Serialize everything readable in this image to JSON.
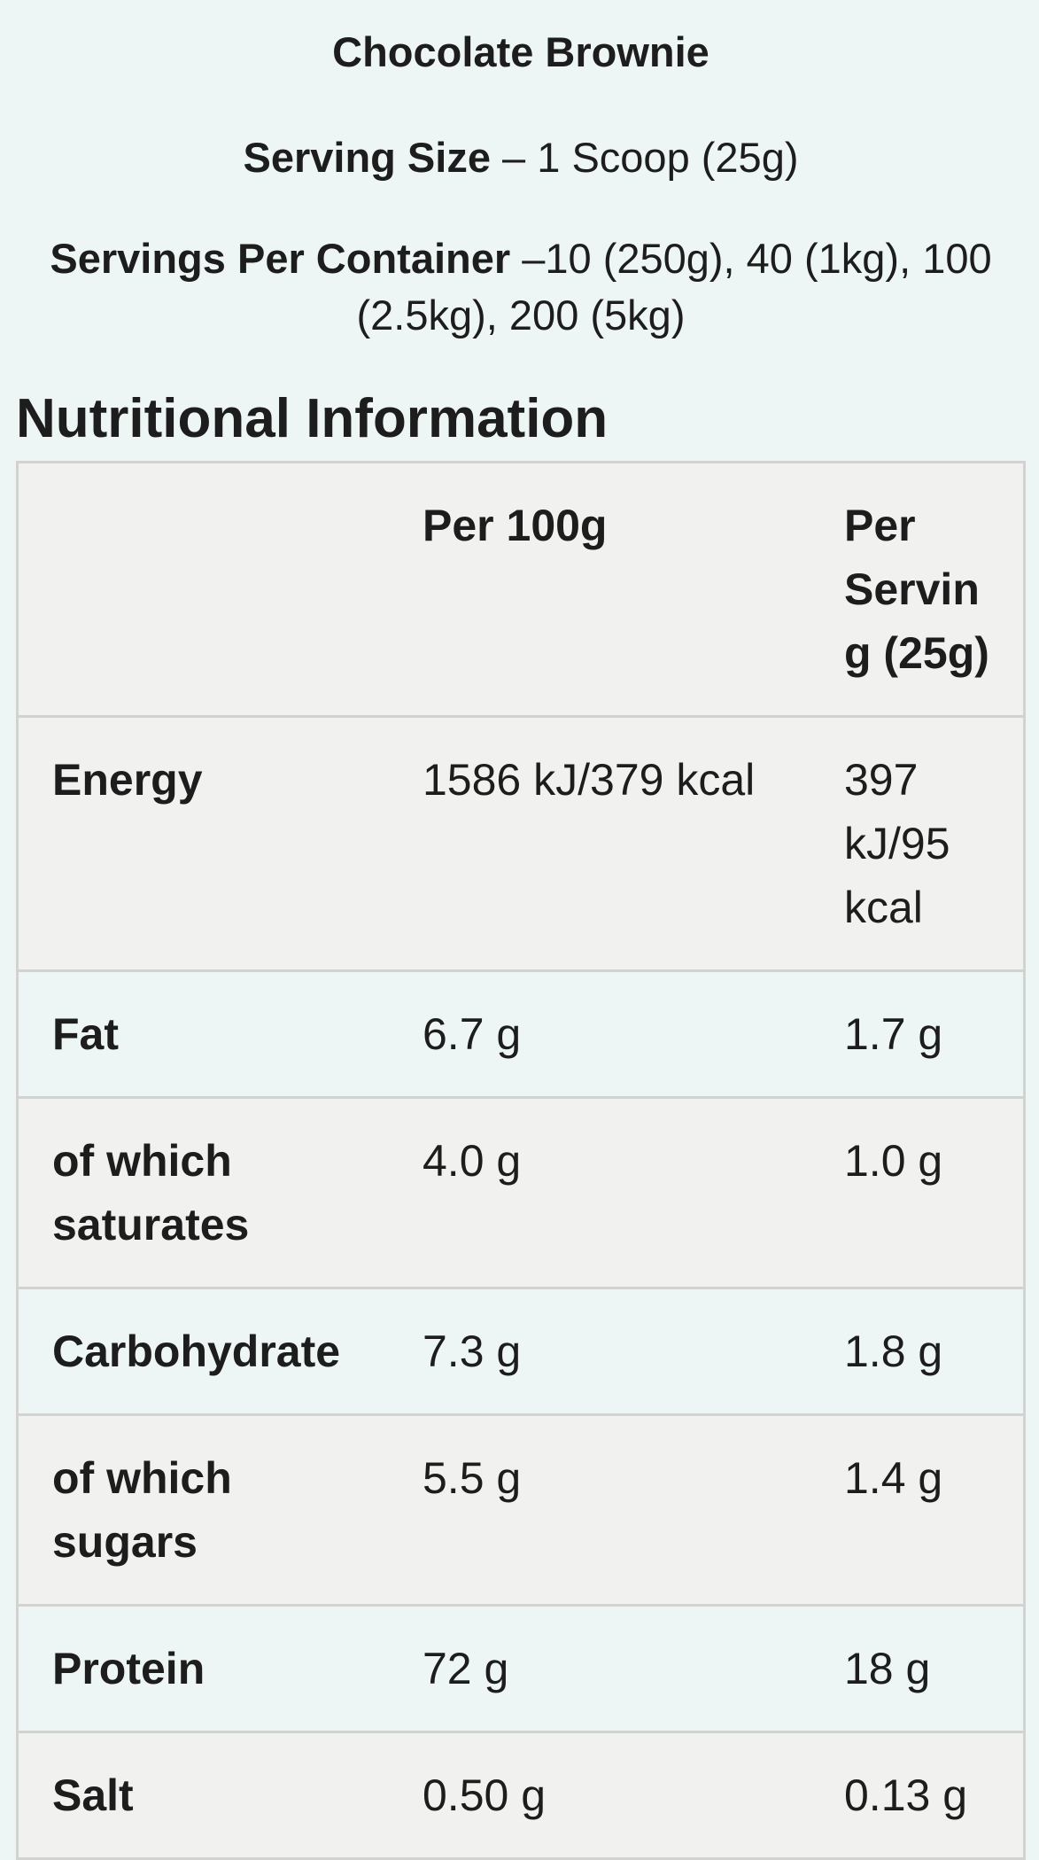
{
  "product": {
    "title": "Chocolate Brownie"
  },
  "serving_size": {
    "label": "Serving Size",
    "value": "– 1 Scoop (25g)"
  },
  "servings_per_container": {
    "label": "Servings Per Container",
    "value": "–10 (250g), 40 (1kg), 100 (2.5kg), 200 (5kg)"
  },
  "section": {
    "heading": "Nutritional Information"
  },
  "table": {
    "columns": [
      "",
      "Per 100g",
      "Per Serving (25g)"
    ],
    "rows": [
      {
        "label": "Energy",
        "per_100g": "1586 kJ/379 kcal",
        "per_serving": "397 kJ/95 kcal"
      },
      {
        "label": "Fat",
        "per_100g": "6.7 g",
        "per_serving": "1.7 g"
      },
      {
        "label": "of which saturates",
        "per_100g": "4.0 g",
        "per_serving": "1.0 g"
      },
      {
        "label": "Carbohydrate",
        "per_100g": "7.3 g",
        "per_serving": "1.8 g"
      },
      {
        "label": "of which sugars",
        "per_100g": "5.5 g",
        "per_serving": "1.4 g"
      },
      {
        "label": "Protein",
        "per_100g": "72 g",
        "per_serving": "18 g"
      },
      {
        "label": "Salt",
        "per_100g": "0.50 g",
        "per_serving": "0.13 g"
      }
    ]
  },
  "theme": {
    "page_background": "#edf6f4",
    "stripe_background": "#f1f1ef",
    "border_color": "#d2d2d0",
    "text_color": "#1d1d1d"
  }
}
